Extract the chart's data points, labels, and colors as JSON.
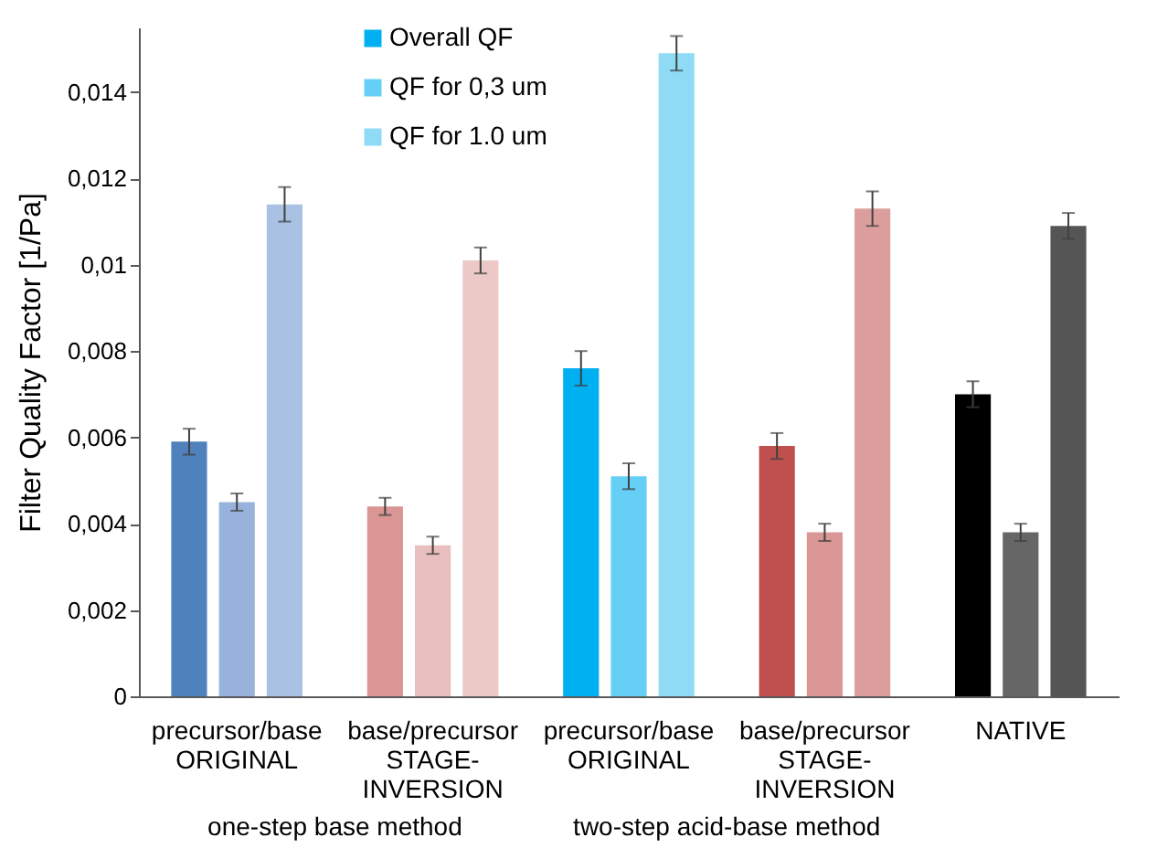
{
  "chart_data": {
    "type": "bar",
    "ylabel": "Filter Quality Factor  [1/Pa]",
    "categories": [
      "precursor/base\nORIGINAL",
      "base/precursor\nSTAGE-\nINVERSION",
      "precursor/base\nORIGINAL",
      "base/precursor\nSTAGE-\nINVERSION",
      "NATIVE"
    ],
    "series": [
      {
        "name": "Overall QF",
        "color": "#00b0f0",
        "colors": [
          "#4f81bd",
          "#d99694",
          "#00b0f0",
          "#c0504d",
          "#000000"
        ],
        "values": [
          0.0059,
          0.0044,
          0.0076,
          0.0058,
          0.007
        ],
        "errors": [
          0.0003,
          0.0002,
          0.0004,
          0.0003,
          0.0003
        ]
      },
      {
        "name": "QF for 0,3 um",
        "color": "#66cff5",
        "colors": [
          "#97b3db",
          "#e8bfbe",
          "#66cff5",
          "#d99694",
          "#666666"
        ],
        "values": [
          0.0045,
          0.0035,
          0.0051,
          0.0038,
          0.0038
        ],
        "errors": [
          0.0002,
          0.0002,
          0.0003,
          0.0002,
          0.0002
        ]
      },
      {
        "name": "QF for 1.0 um",
        "color": "#8fdbf6",
        "colors": [
          "#a9c1e3",
          "#ecc8c7",
          "#8fdbf6",
          "#dc9e9c",
          "#555555"
        ],
        "values": [
          0.0114,
          0.0101,
          0.0149,
          0.0113,
          0.0109
        ],
        "errors": [
          0.0004,
          0.0003,
          0.0004,
          0.0004,
          0.0003
        ]
      }
    ],
    "annotations": [
      "one-step base method",
      "two-step acid-base method"
    ],
    "ylim": [
      0,
      0.0155
    ],
    "yticks": [
      0,
      {
        "value": 0.002,
        "label": "0,002"
      },
      {
        "value": 0.004,
        "label": "0,004"
      },
      {
        "value": 0.006,
        "label": "0,006"
      },
      {
        "value": 0.008,
        "label": "0,008"
      },
      {
        "value": 0.01,
        "label": "0,01"
      },
      {
        "value": 0.012,
        "label": "0,012"
      },
      {
        "value": 0.014,
        "label": "0,014"
      }
    ],
    "grid": false,
    "legend": "top left"
  }
}
